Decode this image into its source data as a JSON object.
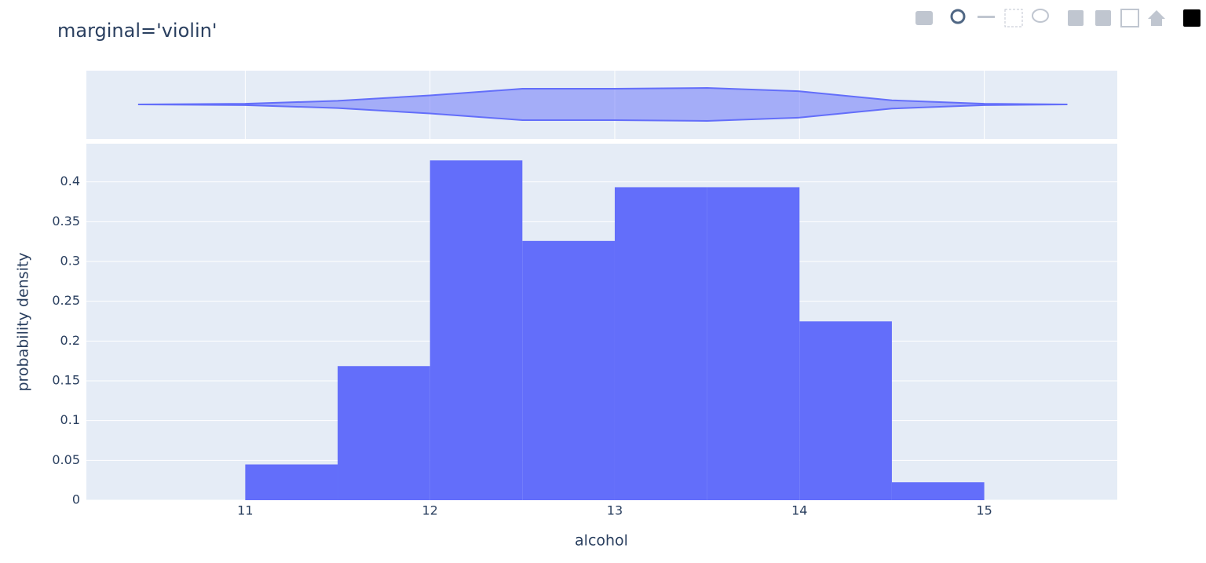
{
  "chart_data": {
    "type": "histogram",
    "title": "marginal='violin'",
    "x_label": "alcohol",
    "y_label": "probability density",
    "bins": [
      11,
      11.5,
      12,
      12.5,
      13,
      13.5,
      14,
      14.5,
      15
    ],
    "values": [
      0.0449,
      0.1685,
      0.427,
      0.3258,
      0.3933,
      0.3933,
      0.2247,
      0.0225
    ],
    "color": "#636efa",
    "xlim": [
      10.14,
      15.72
    ],
    "xticks": [
      11,
      12,
      13,
      14,
      15
    ],
    "ylim": [
      0,
      0.448
    ],
    "yticks": [
      0,
      0.05,
      0.1,
      0.15,
      0.2,
      0.25,
      0.3,
      0.35,
      0.4
    ],
    "grid": true,
    "marginal": {
      "type": "violin",
      "x": [
        10.42,
        11,
        11.5,
        12,
        12.5,
        13,
        13.5,
        14,
        14.5,
        15,
        15.45
      ],
      "density": [
        0,
        0.04,
        0.22,
        0.55,
        0.95,
        0.95,
        1,
        0.8,
        0.25,
        0.04,
        0
      ]
    }
  }
}
